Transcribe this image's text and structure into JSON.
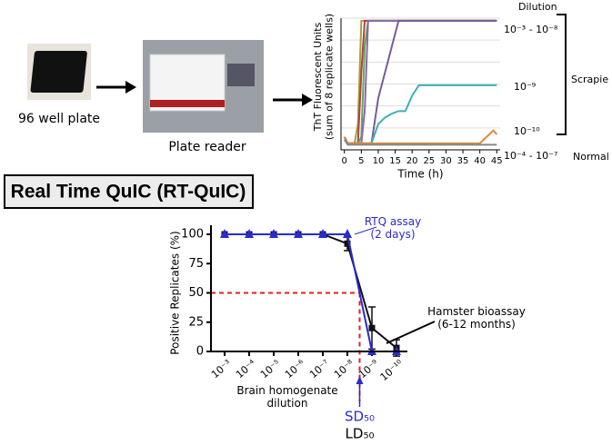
{
  "labels": {
    "plate": "96 well plate",
    "reader": "Plate reader",
    "banner": "Real Time QuIC (RT-QuIC)"
  },
  "chart_data": [
    {
      "type": "line",
      "ylabel": "ThT Fluorescent Units\n(sum of 8 replicate wells)",
      "xlabel": "Time (h)",
      "x": [
        0,
        1,
        2,
        3,
        4,
        5,
        6,
        7,
        8,
        10,
        12,
        14,
        16,
        18,
        20,
        22,
        24,
        26,
        30,
        35,
        40,
        44,
        45
      ],
      "xlim": [
        -1,
        46
      ],
      "xticks": [
        0,
        5,
        10,
        15,
        20,
        25,
        30,
        35,
        40,
        45
      ],
      "ylim": [
        0,
        102
      ],
      "series": [
        {
          "color": "#a8a040",
          "values": [
            10,
            5,
            5,
            5,
            20,
            100,
            100,
            100,
            100,
            100,
            100,
            100,
            100,
            100,
            100,
            100,
            100,
            100,
            100,
            100,
            100,
            100,
            100
          ]
        },
        {
          "color": "#b04040",
          "values": [
            10,
            5,
            5,
            5,
            5,
            60,
            100,
            100,
            100,
            100,
            100,
            100,
            100,
            100,
            100,
            100,
            100,
            100,
            100,
            100,
            100,
            100,
            100
          ]
        },
        {
          "color": "#60a860",
          "values": [
            10,
            5,
            5,
            5,
            5,
            10,
            80,
            100,
            100,
            100,
            100,
            100,
            100,
            100,
            100,
            100,
            100,
            100,
            100,
            100,
            100,
            100,
            100
          ]
        },
        {
          "color": "#8a6aa8",
          "values": [
            10,
            5,
            5,
            5,
            5,
            5,
            30,
            100,
            100,
            100,
            100,
            100,
            100,
            100,
            100,
            100,
            100,
            100,
            100,
            100,
            100,
            100,
            100
          ]
        },
        {
          "color": "#7a5a9a",
          "values": [
            10,
            5,
            5,
            5,
            5,
            5,
            5,
            5,
            5,
            40,
            60,
            80,
            100,
            100,
            100,
            100,
            100,
            100,
            100,
            100,
            100,
            100,
            100
          ]
        },
        {
          "color": "#40b0b8",
          "values": [
            10,
            5,
            5,
            5,
            5,
            5,
            5,
            5,
            5,
            20,
            25,
            28,
            30,
            30,
            42,
            50,
            50,
            50,
            50,
            50,
            50,
            50,
            50
          ]
        },
        {
          "color": "#e0883a",
          "values": [
            10,
            5,
            5,
            5,
            5,
            5,
            5,
            5,
            5,
            5,
            5,
            5,
            5,
            5,
            5,
            5,
            5,
            5,
            5,
            5,
            5,
            15,
            12
          ]
        },
        {
          "color": "#888888",
          "values": [
            8,
            4,
            4,
            4,
            4,
            4,
            4,
            4,
            4,
            4,
            4,
            4,
            4,
            4,
            4,
            4,
            4,
            4,
            4,
            4,
            4,
            4,
            4
          ]
        }
      ],
      "annotations": {
        "dilution": "Dilution",
        "top": "10⁻³ - 10⁻⁸",
        "mid": "10⁻⁹",
        "low": "10⁻¹⁰",
        "normal_range": "10⁻⁴ - 10⁻⁷",
        "scrapie": "Scrapie",
        "normal": "Normal"
      }
    },
    {
      "type": "line",
      "ylabel": "Positive Replicates (%)",
      "xlabel": "Brain homogenate\ndilution",
      "categories": [
        "10⁻³",
        "10⁻⁴",
        "10⁻⁵",
        "10⁻⁶",
        "10⁻⁷",
        "10⁻⁸",
        "10⁻⁹",
        "10⁻¹⁰"
      ],
      "ylim": [
        0,
        100
      ],
      "yticks": [
        0,
        25,
        50,
        75,
        100
      ],
      "hline": 50,
      "series": [
        {
          "name": "Hamster bioassay\n(6-12 months)",
          "color": "#111111",
          "marker": "square",
          "values": [
            100,
            100,
            100,
            100,
            100,
            92,
            20,
            3
          ],
          "errors": [
            0,
            0,
            0,
            0,
            0,
            6,
            18,
            7
          ]
        },
        {
          "name": "RTQ assay\n(2 days)",
          "color": "#2a2ad0",
          "marker": "triangle",
          "values": [
            100,
            100,
            100,
            100,
            100,
            100,
            0,
            0
          ]
        }
      ],
      "annotations": {
        "sd": "SD₅₀",
        "ld": "LD₅₀"
      }
    }
  ]
}
